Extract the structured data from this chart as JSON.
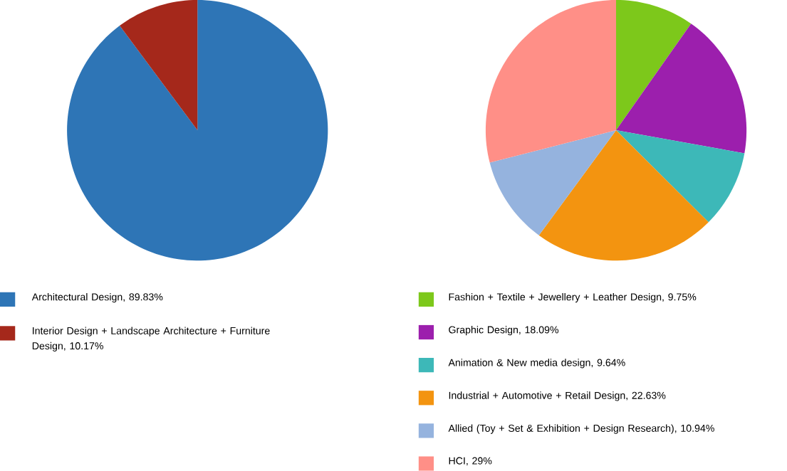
{
  "chart_data": [
    {
      "type": "pie",
      "categories": [
        "Architectural Design, 89.83%",
        "Interior Design + Landscape Architecture + Furniture Design, 10.17%"
      ],
      "values": [
        89.83,
        10.17
      ],
      "colors": [
        "#2e75b6",
        "#a5281b"
      ],
      "legend": "bottom"
    },
    {
      "type": "pie",
      "categories": [
        "Fashion + Textile + Jewellery + Leather Design, 9.75%",
        "Graphic Design, 18.09%",
        "Animation & New media design, 9.64%",
        "Industrial + Automotive + Retail Design, 22.63%",
        "Allied (Toy + Set & Exhibition +  Design Research), 10.94%",
        "HCI, 29%"
      ],
      "values": [
        9.75,
        18.09,
        9.64,
        22.63,
        10.94,
        29
      ],
      "colors": [
        "#7dc81b",
        "#9c1fad",
        "#3db8b8",
        "#f39410",
        "#95b3de",
        "#ff8f87"
      ],
      "legend": "bottom"
    }
  ]
}
